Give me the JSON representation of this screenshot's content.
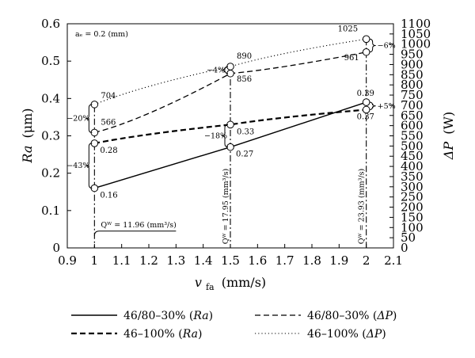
{
  "chart_data": {
    "type": "line",
    "x": [
      1,
      1.5,
      2
    ],
    "xlabel": "v",
    "xlabel_sub": "fa",
    "xunit": "(mm/s)",
    "ylabel_left": "Ra",
    "ylabel_left_unit": "(μm)",
    "ylabel_right": "ΔP",
    "ylabel_right_unit": "(W)",
    "xlim": [
      0.9,
      2.1
    ],
    "ylim_left": [
      0,
      0.6
    ],
    "ylim_right": [
      0,
      1100
    ],
    "x_ticks": [
      "0.9",
      "1",
      "1.1",
      "1.2",
      "1.3",
      "1.4",
      "1.5",
      "1.6",
      "1.7",
      "1.8",
      "1.9",
      "2",
      "2.1"
    ],
    "y_left_ticks": [
      "0",
      "0.1",
      "0.2",
      "0.3",
      "0.4",
      "0.5",
      "0.6"
    ],
    "y_right_ticks": [
      "0",
      "50",
      "100",
      "150",
      "200",
      "250",
      "300",
      "350",
      "400",
      "450",
      "500",
      "550",
      "600",
      "650",
      "700",
      "750",
      "800",
      "850",
      "900",
      "950",
      "1000",
      "1050",
      "1100"
    ],
    "grid": false,
    "series": [
      {
        "name": "46/80–30% (Ra)",
        "axis": "left",
        "style": "solid",
        "values": [
          0.16,
          0.27,
          0.39
        ],
        "labels": [
          "0.16",
          "0.27",
          "0.39"
        ]
      },
      {
        "name": "46–100% (Ra)",
        "axis": "left",
        "style": "bold-dash",
        "values": [
          0.28,
          0.33,
          0.37
        ],
        "labels": [
          "0.28",
          "0.33",
          "0.37"
        ]
      },
      {
        "name": "46/80–30% (ΔP)",
        "axis": "right",
        "style": "dash",
        "values": [
          566,
          856,
          961
        ],
        "labels": [
          "566",
          "856",
          "961"
        ]
      },
      {
        "name": "46–100% (ΔP)",
        "axis": "right",
        "style": "dotted",
        "values": [
          704,
          890,
          1025
        ],
        "labels": [
          "704",
          "890",
          "1025"
        ]
      }
    ],
    "annotations": {
      "ae": "aₑ = 0.2 (mm)",
      "qw1": "Qᵂ = 11.96 (mm³/s)",
      "qw2": "Qᵂ = 17.95 (mm³/s)",
      "qw3": "Qᵂ = 23.93 (mm³/s)",
      "pct_20": "−20%",
      "pct_43": "−43%",
      "pct_4": "−4%",
      "pct_18": "−18%",
      "pct_6": "−6%",
      "pct_5": "+5%"
    },
    "legend": {
      "placement": "bottom",
      "entries": [
        {
          "prefix": "46/80–30% (",
          "sym": "Ra",
          "suffix": ")",
          "style": "solid"
        },
        {
          "prefix": "46/80–30% (",
          "sym": "ΔP",
          "suffix": ")",
          "style": "dash"
        },
        {
          "prefix": "46–100% (",
          "sym": "Ra",
          "suffix": ")",
          "style": "bold-dash"
        },
        {
          "prefix": "46–100% (",
          "sym": "ΔP",
          "suffix": ")",
          "style": "dotted"
        }
      ]
    }
  }
}
